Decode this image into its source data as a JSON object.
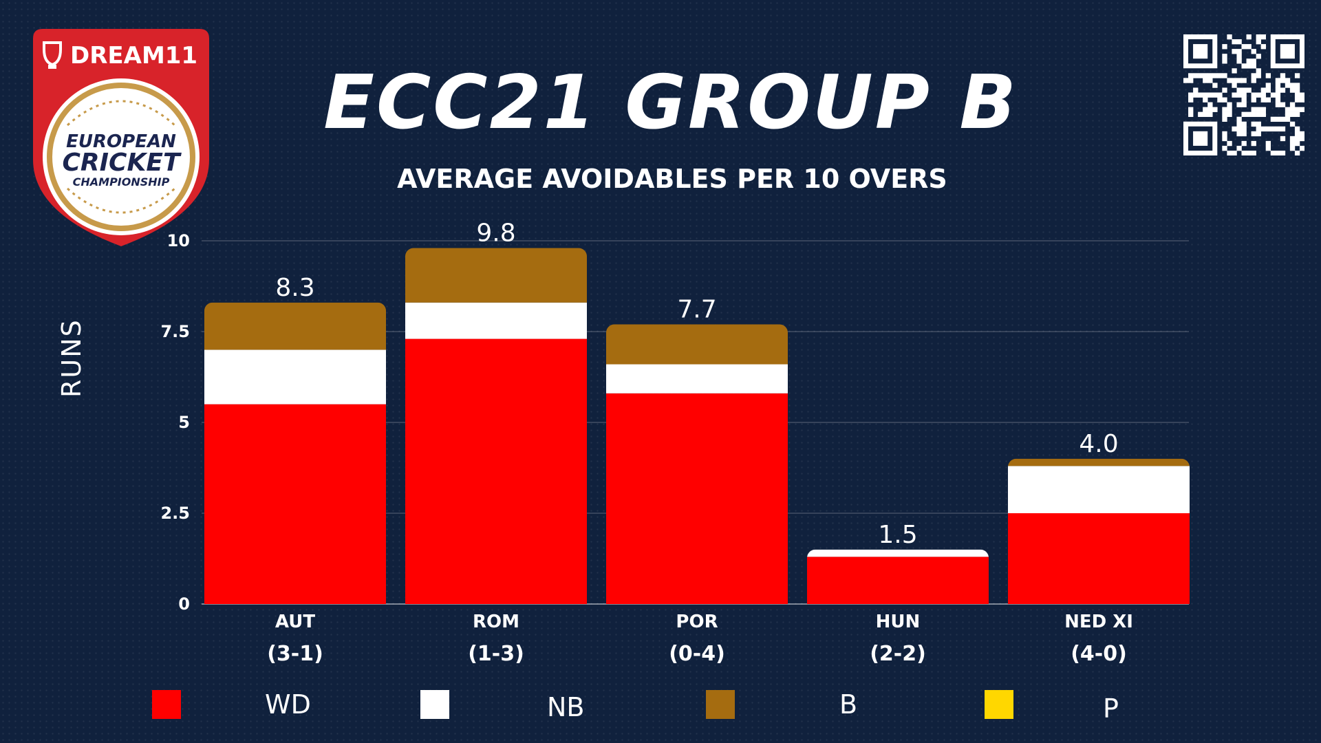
{
  "brand": {
    "logo_text": "DREAM11",
    "badge_text": [
      "EUROPEAN",
      "CRICKET",
      "CHAMPIONSHIP"
    ]
  },
  "colors": {
    "background": "#10213d",
    "wd": "#ff0000",
    "nb": "#ffffff",
    "b": "#a56c10",
    "p": "#ffd700",
    "brand_red": "#d8232a"
  },
  "chart_data": {
    "type": "bar",
    "stacked": true,
    "title": "ECC21 GROUP B",
    "subtitle": "AVERAGE AVOIDABLES PER 10 OVERS",
    "ylabel": "RUNS",
    "xlabel": "",
    "ylim": [
      0,
      10
    ],
    "yticks": [
      0,
      2.5,
      5,
      7.5,
      10
    ],
    "ytick_labels": [
      "0",
      "2.5",
      "5",
      "7.5",
      "10"
    ],
    "grid": true,
    "legend_position": "bottom",
    "categories": [
      "AUT",
      "ROM",
      "POR",
      "HUN",
      "NED XI"
    ],
    "category_records": [
      "(3-1)",
      "(1-3)",
      "(0-4)",
      "(2-2)",
      "(4-0)"
    ],
    "series": [
      {
        "name": "WD",
        "color": "#ff0000",
        "values": [
          5.5,
          7.3,
          5.8,
          1.3,
          2.5
        ]
      },
      {
        "name": "NB",
        "color": "#ffffff",
        "values": [
          1.5,
          1.0,
          0.8,
          0.2,
          1.3
        ]
      },
      {
        "name": "B",
        "color": "#a56c10",
        "values": [
          1.3,
          1.5,
          1.1,
          0.0,
          0.2
        ]
      },
      {
        "name": "P",
        "color": "#ffd700",
        "values": [
          0,
          0,
          0,
          0,
          0
        ]
      }
    ],
    "totals": [
      8.3,
      9.8,
      7.7,
      1.5,
      4.0
    ],
    "total_labels": [
      "8.3",
      "9.8",
      "7.7",
      "1.5",
      "4.0"
    ]
  }
}
